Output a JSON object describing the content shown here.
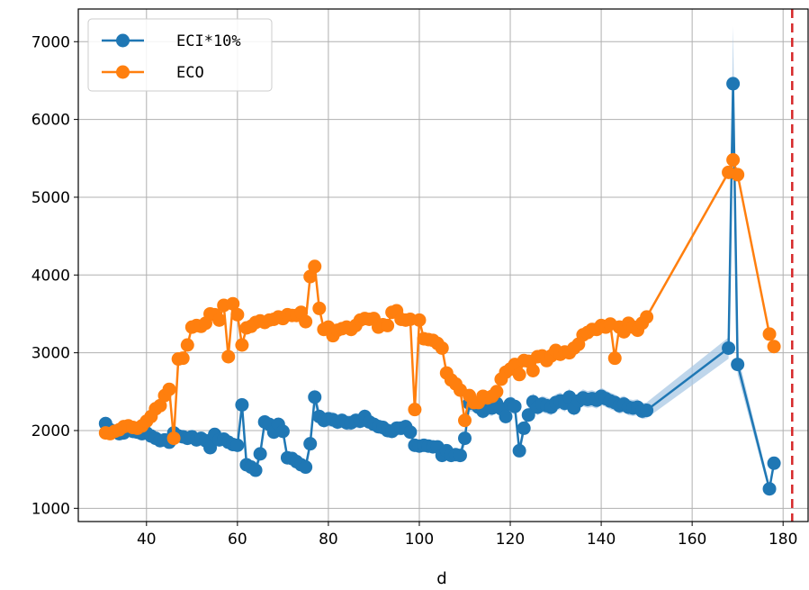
{
  "chart_data": {
    "type": "line",
    "title": "",
    "xlabel": "d",
    "ylabel": "",
    "xlim": [
      25,
      185.5
    ],
    "ylim": [
      830,
      7420
    ],
    "xticks": [
      40,
      60,
      80,
      100,
      120,
      140,
      160,
      180
    ],
    "yticks": [
      1000,
      2000,
      3000,
      4000,
      5000,
      6000,
      7000
    ],
    "grid": true,
    "legend_position": "top-left",
    "reference_line": {
      "x": 182,
      "color": "#d62728",
      "style": "dashed"
    },
    "series": [
      {
        "name": "ECI*10%",
        "color": "#1f77b4",
        "band_color": "#aac8e4",
        "x": [
          31,
          32,
          33,
          34,
          35,
          36,
          37,
          38,
          39,
          40,
          41,
          42,
          43,
          44,
          45,
          46,
          47,
          48,
          49,
          50,
          51,
          52,
          53,
          54,
          55,
          56,
          57,
          58,
          59,
          60,
          61,
          62,
          63,
          64,
          65,
          66,
          67,
          68,
          69,
          70,
          71,
          72,
          73,
          74,
          75,
          76,
          77,
          78,
          79,
          80,
          81,
          82,
          83,
          84,
          85,
          86,
          87,
          88,
          89,
          90,
          91,
          92,
          93,
          94,
          95,
          96,
          97,
          98,
          99,
          100,
          101,
          102,
          103,
          104,
          105,
          106,
          107,
          108,
          109,
          110,
          111,
          112,
          113,
          114,
          115,
          116,
          117,
          118,
          119,
          120,
          121,
          122,
          123,
          124,
          125,
          126,
          127,
          128,
          129,
          130,
          131,
          132,
          133,
          134,
          135,
          136,
          137,
          138,
          139,
          140,
          141,
          142,
          143,
          144,
          145,
          146,
          147,
          148,
          149,
          150,
          168,
          169,
          170,
          177,
          178
        ],
        "y": [
          2090,
          2010,
          1990,
          1960,
          1970,
          2010,
          1990,
          1980,
          1960,
          1970,
          1930,
          1900,
          1870,
          1880,
          1850,
          1970,
          1930,
          1920,
          1900,
          1920,
          1880,
          1900,
          1870,
          1780,
          1950,
          1880,
          1890,
          1850,
          1820,
          1810,
          2330,
          1560,
          1530,
          1490,
          1700,
          2110,
          2080,
          1980,
          2080,
          1990,
          1650,
          1640,
          1600,
          1560,
          1530,
          1830,
          2430,
          2180,
          2130,
          2150,
          2140,
          2110,
          2130,
          2100,
          2100,
          2130,
          2120,
          2180,
          2110,
          2080,
          2050,
          2040,
          2000,
          1990,
          2030,
          2030,
          2050,
          1980,
          1810,
          1800,
          1810,
          1800,
          1790,
          1790,
          1680,
          1740,
          1680,
          1690,
          1680,
          1900,
          2350,
          2350,
          2300,
          2250,
          2300,
          2290,
          2350,
          2280,
          2180,
          2340,
          2310,
          1740,
          2030,
          2200,
          2370,
          2300,
          2340,
          2320,
          2300,
          2360,
          2380,
          2350,
          2430,
          2290,
          2380,
          2420,
          2400,
          2410,
          2390,
          2440,
          2410,
          2380,
          2360,
          2320,
          2340,
          2300,
          2290,
          2300,
          2250,
          2260,
          3060,
          6460,
          2850,
          1250,
          1580
        ]
      },
      {
        "name": "ECO",
        "color": "#ff7f0e",
        "x": [
          31,
          32,
          33,
          34,
          35,
          36,
          37,
          38,
          39,
          40,
          41,
          42,
          43,
          44,
          45,
          46,
          47,
          48,
          49,
          50,
          51,
          52,
          53,
          54,
          55,
          56,
          57,
          58,
          59,
          60,
          61,
          62,
          63,
          64,
          65,
          66,
          67,
          68,
          69,
          70,
          71,
          72,
          73,
          74,
          75,
          76,
          77,
          78,
          79,
          80,
          81,
          82,
          83,
          84,
          85,
          86,
          87,
          88,
          89,
          90,
          91,
          92,
          93,
          94,
          95,
          96,
          97,
          98,
          99,
          100,
          101,
          102,
          103,
          104,
          105,
          106,
          107,
          108,
          109,
          110,
          111,
          112,
          113,
          114,
          115,
          116,
          117,
          118,
          119,
          120,
          121,
          122,
          123,
          124,
          125,
          126,
          127,
          128,
          129,
          130,
          131,
          132,
          133,
          134,
          135,
          136,
          137,
          138,
          139,
          140,
          141,
          142,
          143,
          144,
          145,
          146,
          147,
          148,
          149,
          150,
          168,
          169,
          170,
          177,
          178
        ],
        "y": [
          1970,
          1960,
          1990,
          2010,
          2050,
          2060,
          2040,
          2030,
          2060,
          2120,
          2180,
          2280,
          2320,
          2450,
          2530,
          1900,
          2920,
          2930,
          3100,
          3330,
          3350,
          3340,
          3380,
          3500,
          3490,
          3420,
          3610,
          2950,
          3630,
          3490,
          3100,
          3320,
          3340,
          3390,
          3410,
          3390,
          3420,
          3430,
          3460,
          3440,
          3490,
          3480,
          3480,
          3520,
          3400,
          3980,
          4110,
          3570,
          3300,
          3330,
          3220,
          3290,
          3310,
          3330,
          3300,
          3350,
          3420,
          3440,
          3430,
          3440,
          3330,
          3360,
          3350,
          3520,
          3540,
          3430,
          3420,
          3430,
          2270,
          3420,
          3180,
          3170,
          3160,
          3120,
          3060,
          2740,
          2650,
          2600,
          2520,
          2130,
          2450,
          2360,
          2360,
          2440,
          2420,
          2440,
          2500,
          2660,
          2750,
          2790,
          2850,
          2720,
          2900,
          2890,
          2770,
          2950,
          2960,
          2900,
          2960,
          3030,
          2980,
          3010,
          3000,
          3060,
          3110,
          3230,
          3260,
          3300,
          3300,
          3350,
          3330,
          3370,
          2930,
          3330,
          3270,
          3380,
          3330,
          3290,
          3380,
          3460,
          5320,
          5480,
          5290,
          3240,
          3080
        ]
      }
    ]
  }
}
